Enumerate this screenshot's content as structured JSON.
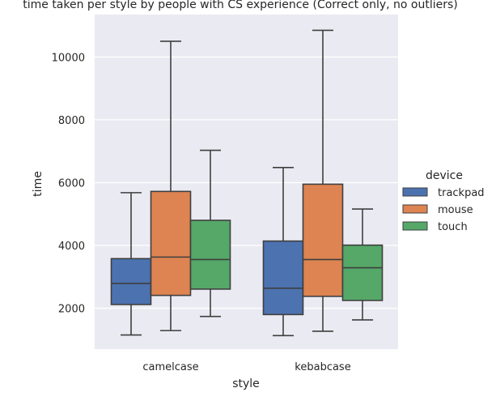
{
  "chart_data": {
    "type": "box",
    "title": "time taken per style by people with CS experience (Correct only, no outliers)",
    "xlabel": "style",
    "ylabel": "time",
    "categories": [
      "camelcase",
      "kebabcase"
    ],
    "ylim": [
      700,
      11350
    ],
    "yticks": [
      2000,
      4000,
      6000,
      8000,
      10000
    ],
    "legend": {
      "title": "device",
      "placement": "right"
    },
    "series": [
      {
        "name": "trackpad",
        "color": "#4c72b0",
        "boxes": [
          {
            "min": 1150,
            "q1": 2120,
            "median": 2790,
            "q3": 3580,
            "max": 5680
          },
          {
            "min": 1130,
            "q1": 1800,
            "median": 2640,
            "q3": 4140,
            "max": 6480
          }
        ]
      },
      {
        "name": "mouse",
        "color": "#dd8452",
        "boxes": [
          {
            "min": 1290,
            "q1": 2410,
            "median": 3630,
            "q3": 5720,
            "max": 10500
          },
          {
            "min": 1270,
            "q1": 2380,
            "median": 3550,
            "q3": 5950,
            "max": 10850
          }
        ]
      },
      {
        "name": "touch",
        "color": "#55a868",
        "boxes": [
          {
            "min": 1740,
            "q1": 2610,
            "median": 3550,
            "q3": 4800,
            "max": 7030
          },
          {
            "min": 1630,
            "q1": 2250,
            "median": 3290,
            "q3": 4010,
            "max": 5160
          }
        ]
      }
    ],
    "background_color": "#eaeaf2",
    "grid_color": "#ffffff",
    "line_color": "#3f3f3f"
  }
}
